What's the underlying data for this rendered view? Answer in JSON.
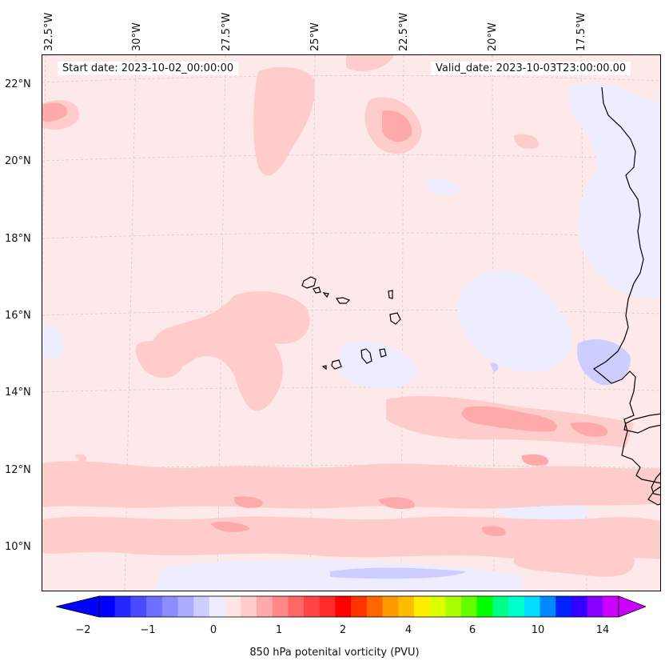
{
  "header": {
    "start_date": "Start date: 2023-10-02_00:00:00",
    "valid_date": "Valid_date: 2023-10-03T23:00:00.00"
  },
  "longitude_labels": [
    "32.5°W",
    "30°W",
    "27.5°W",
    "25°W",
    "22.5°W",
    "20°W",
    "17.5°W"
  ],
  "latitude_labels": [
    "22°N",
    "20°N",
    "18°N",
    "16°N",
    "14°N",
    "12°N",
    "10°N"
  ],
  "colorbar": {
    "label": "850 hPa potenital vorticity (PVU)",
    "tick_labels": [
      "−2",
      "−1",
      "0",
      "1",
      "2",
      "4",
      "6",
      "10",
      "14"
    ],
    "colors": [
      "#0000ff",
      "#2626ff",
      "#4a4aff",
      "#6e6eff",
      "#8c8cff",
      "#ababff",
      "#cdcdff",
      "#ededff",
      "#ffe6e6",
      "#ffcccc",
      "#ffaaaa",
      "#ff8888",
      "#ff6666",
      "#ff4444",
      "#ff2a2a",
      "#ff0000",
      "#ff3300",
      "#ff6600",
      "#ff9900",
      "#ffbb00",
      "#ffee00",
      "#ddff00",
      "#aaff00",
      "#66ff00",
      "#00ff00",
      "#00ff88",
      "#00ffcc",
      "#00ddff",
      "#0088ff",
      "#0022ff",
      "#3300ff",
      "#8800ff",
      "#cc00ff"
    ],
    "under_color": "#0000ff",
    "over_color": "#cc00ff"
  }
}
